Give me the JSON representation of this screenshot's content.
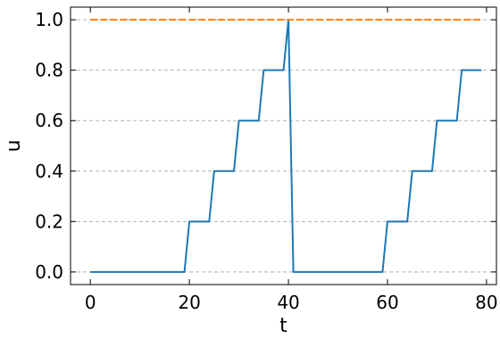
{
  "chart_data": {
    "type": "line",
    "title": "",
    "xlabel": "t",
    "ylabel": "u",
    "xlim": [
      -4,
      82
    ],
    "ylim": [
      -0.05,
      1.05
    ],
    "x_ticks": [
      0,
      20,
      40,
      60,
      80
    ],
    "y_ticks": [
      0.0,
      0.2,
      0.4,
      0.6,
      0.8,
      1.0
    ],
    "x_tick_labels": [
      "0",
      "20",
      "40",
      "60",
      "80"
    ],
    "y_tick_labels": [
      "0.0",
      "0.2",
      "0.4",
      "0.6",
      "0.8",
      "1.0"
    ],
    "grid": "y-only-dashed",
    "legend": "none",
    "series": [
      {
        "color": "#1f77b4",
        "style": "solid",
        "x": [
          0,
          19,
          20,
          24,
          25,
          29,
          30,
          34,
          35,
          39,
          40,
          41,
          59,
          60,
          64,
          65,
          69,
          70,
          74,
          75,
          79
        ],
        "y": [
          0.0,
          0.0,
          0.2,
          0.2,
          0.4,
          0.4,
          0.6,
          0.6,
          0.8,
          0.8,
          1.0,
          0.0,
          0.0,
          0.2,
          0.2,
          0.4,
          0.4,
          0.6,
          0.6,
          0.8,
          0.8
        ]
      },
      {
        "color": "#ff7f0e",
        "style": "dashed",
        "x": [
          0,
          79
        ],
        "y": [
          1.0,
          1.0
        ]
      }
    ]
  }
}
